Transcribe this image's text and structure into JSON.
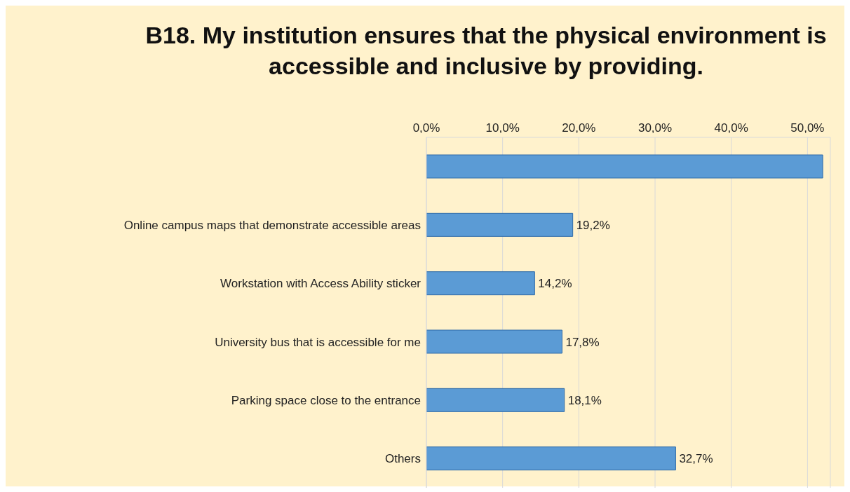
{
  "chart_data": {
    "type": "bar",
    "orientation": "horizontal",
    "title": "B18. My institution ensures that the physical environment is accessible and inclusive by providing.",
    "categories": [
      null,
      "Online campus maps that demonstrate accessible areas",
      "Workstation with Access Ability sticker",
      "University bus that is accessible for me",
      "Parking space close to the entrance",
      "Others"
    ],
    "values": [
      52,
      19.2,
      14.2,
      17.8,
      18.1,
      32.7
    ],
    "value_labels": [
      null,
      "19,2%",
      "14,2%",
      "17,8%",
      "18,1%",
      "32,7%"
    ],
    "color": "#5b9bd5",
    "xlim": [
      0,
      53
    ],
    "xticks": [
      {
        "value": 0,
        "label": "0,0%"
      },
      {
        "value": 10,
        "label": "10,0%"
      },
      {
        "value": 20,
        "label": "20,0%"
      },
      {
        "value": 30,
        "label": "30,0%"
      },
      {
        "value": 40,
        "label": "40,0%"
      },
      {
        "value": 50,
        "label": "50,0%"
      }
    ],
    "grid": "x"
  }
}
